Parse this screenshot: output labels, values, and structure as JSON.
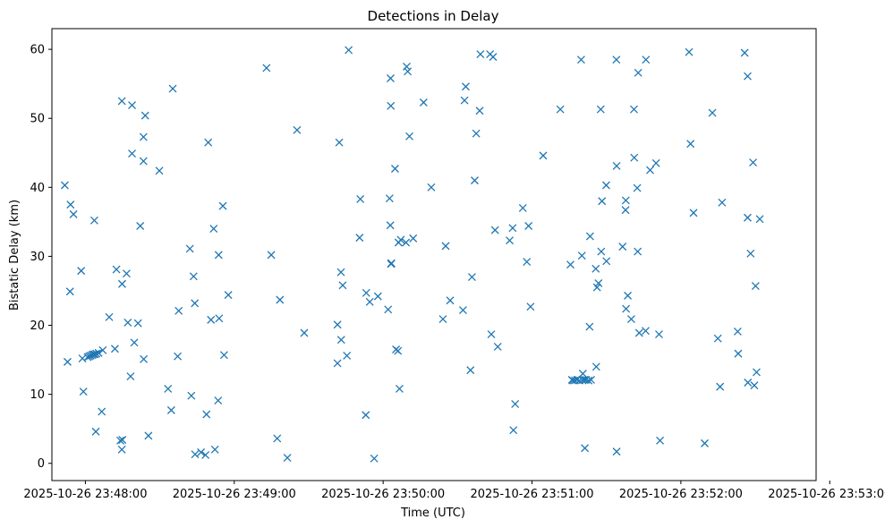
{
  "chart_data": {
    "type": "scatter",
    "title": "Detections in Delay",
    "xlabel": "Time (UTC)",
    "ylabel": "Bistatic Delay (km)",
    "x_unit": "seconds since 2025-10-26 23:47:00",
    "xlim": [
      46.5,
      354.5
    ],
    "ylim": [
      -2.5,
      63
    ],
    "x_ticks": [
      {
        "value": 60,
        "label": "2025-10-26 23:48:00"
      },
      {
        "value": 120,
        "label": "2025-10-26 23:49:00"
      },
      {
        "value": 180,
        "label": "2025-10-26 23:50:00"
      },
      {
        "value": 240,
        "label": "2025-10-26 23:51:00"
      },
      {
        "value": 300,
        "label": "2025-10-26 23:52:00"
      },
      {
        "value": 360,
        "label": "2025-10-26 23:53:00"
      }
    ],
    "y_ticks": [
      {
        "value": 0,
        "label": "0"
      },
      {
        "value": 10,
        "label": "10"
      },
      {
        "value": 20,
        "label": "20"
      },
      {
        "value": 30,
        "label": "30"
      },
      {
        "value": 40,
        "label": "40"
      },
      {
        "value": 50,
        "label": "50"
      },
      {
        "value": 60,
        "label": "60"
      }
    ],
    "marker": "x",
    "color": "#1f77b4",
    "grid": false,
    "series": [
      {
        "name": "detections",
        "points": [
          [
            51.7,
            40.3
          ],
          [
            52.8,
            14.7
          ],
          [
            54.0,
            37.5
          ],
          [
            55.2,
            36.1
          ],
          [
            53.8,
            24.9
          ],
          [
            58.3,
            27.9
          ],
          [
            58.8,
            15.2
          ],
          [
            59.2,
            10.4
          ],
          [
            60.9,
            15.4
          ],
          [
            61.5,
            15.5
          ],
          [
            62.1,
            15.6
          ],
          [
            62.7,
            15.7
          ],
          [
            63.2,
            15.8
          ],
          [
            63.8,
            15.8
          ],
          [
            64.4,
            15.9
          ],
          [
            65.3,
            16.0
          ],
          [
            67.0,
            16.4
          ],
          [
            63.6,
            35.2
          ],
          [
            64.2,
            4.6
          ],
          [
            66.6,
            7.5
          ],
          [
            69.6,
            21.2
          ],
          [
            71.9,
            16.6
          ],
          [
            72.5,
            28.1
          ],
          [
            74.1,
            3.3
          ],
          [
            74.9,
            3.4
          ],
          [
            74.7,
            2.0
          ],
          [
            74.7,
            52.5
          ],
          [
            74.8,
            26.0
          ],
          [
            76.6,
            27.5
          ],
          [
            77.1,
            20.4
          ],
          [
            78.2,
            12.6
          ],
          [
            78.8,
            51.9
          ],
          [
            78.8,
            44.9
          ],
          [
            79.7,
            17.5
          ],
          [
            81.2,
            20.3
          ],
          [
            82.1,
            34.4
          ],
          [
            83.5,
            15.1
          ],
          [
            83.4,
            47.3
          ],
          [
            83.4,
            43.8
          ],
          [
            84.1,
            50.4
          ],
          [
            85.4,
            4.0
          ],
          [
            89.8,
            42.4
          ],
          [
            93.3,
            10.8
          ],
          [
            94.6,
            7.7
          ],
          [
            95.2,
            54.3
          ],
          [
            97.2,
            15.5
          ],
          [
            97.6,
            22.1
          ],
          [
            102.1,
            31.1
          ],
          [
            102.7,
            9.8
          ],
          [
            103.6,
            27.1
          ],
          [
            104.1,
            23.2
          ],
          [
            104.2,
            1.3
          ],
          [
            106.6,
            1.6
          ],
          [
            108.4,
            1.2
          ],
          [
            108.8,
            7.1
          ],
          [
            109.5,
            46.5
          ],
          [
            110.6,
            20.8
          ],
          [
            111.7,
            34.0
          ],
          [
            112.2,
            2.0
          ],
          [
            113.5,
            9.1
          ],
          [
            113.7,
            30.2
          ],
          [
            113.9,
            21.0
          ],
          [
            115.4,
            37.3
          ],
          [
            115.9,
            15.7
          ],
          [
            117.6,
            24.4
          ],
          [
            133.0,
            57.3
          ],
          [
            134.9,
            30.2
          ],
          [
            137.3,
            3.6
          ],
          [
            138.4,
            23.7
          ],
          [
            141.4,
            0.8
          ],
          [
            145.3,
            48.3
          ],
          [
            148.2,
            18.9
          ],
          [
            161.6,
            20.1
          ],
          [
            161.6,
            14.5
          ],
          [
            162.3,
            46.5
          ],
          [
            163.0,
            27.7
          ],
          [
            163.1,
            17.9
          ],
          [
            163.7,
            25.8
          ],
          [
            165.4,
            15.6
          ],
          [
            166.1,
            59.9
          ],
          [
            170.8,
            38.3
          ],
          [
            170.5,
            32.7
          ],
          [
            173.2,
            24.7
          ],
          [
            173.0,
            7.0
          ],
          [
            174.6,
            23.4
          ],
          [
            176.4,
            0.7
          ],
          [
            177.9,
            24.2
          ],
          [
            182.0,
            22.3
          ],
          [
            182.6,
            38.4
          ],
          [
            182.9,
            34.5
          ],
          [
            183.3,
            29.0
          ],
          [
            183.2,
            28.9
          ],
          [
            183.1,
            51.8
          ],
          [
            183.0,
            55.8
          ],
          [
            184.8,
            42.7
          ],
          [
            185.2,
            16.5
          ],
          [
            186.0,
            16.3
          ],
          [
            186.6,
            10.8
          ],
          [
            186.2,
            32.0
          ],
          [
            187.1,
            32.4
          ],
          [
            189.2,
            32.0
          ],
          [
            189.5,
            57.5
          ],
          [
            189.9,
            56.8
          ],
          [
            190.6,
            47.4
          ],
          [
            192.1,
            32.6
          ],
          [
            196.3,
            52.3
          ],
          [
            199.4,
            40.0
          ],
          [
            204.1,
            20.9
          ],
          [
            205.2,
            31.5
          ],
          [
            207.0,
            23.6
          ],
          [
            212.2,
            22.2
          ],
          [
            212.8,
            52.6
          ],
          [
            213.3,
            54.6
          ],
          [
            215.2,
            13.5
          ],
          [
            215.8,
            27.0
          ],
          [
            216.9,
            41.0
          ],
          [
            217.5,
            47.8
          ],
          [
            218.9,
            51.1
          ],
          [
            219.2,
            59.3
          ],
          [
            223.1,
            59.3
          ],
          [
            223.6,
            18.7
          ],
          [
            224.3,
            58.9
          ],
          [
            225.1,
            33.8
          ],
          [
            226.2,
            16.9
          ],
          [
            231.0,
            32.3
          ],
          [
            232.2,
            34.1
          ],
          [
            232.5,
            4.8
          ],
          [
            233.2,
            8.6
          ],
          [
            236.3,
            37.0
          ],
          [
            237.9,
            29.2
          ],
          [
            238.6,
            34.4
          ],
          [
            239.4,
            22.7
          ],
          [
            244.5,
            44.6
          ],
          [
            251.4,
            51.3
          ],
          [
            255.5,
            28.8
          ],
          [
            256.1,
            12.1
          ],
          [
            256.5,
            12.0
          ],
          [
            257.3,
            12.0
          ],
          [
            258.1,
            12.1
          ],
          [
            259.1,
            12.0
          ],
          [
            260.3,
            12.1
          ],
          [
            261.1,
            12.1
          ],
          [
            261.8,
            12.1
          ],
          [
            262.8,
            12.0
          ],
          [
            263.8,
            12.1
          ],
          [
            259.8,
            58.5
          ],
          [
            260.5,
            13.0
          ],
          [
            261.3,
            2.2
          ],
          [
            260.1,
            30.1
          ],
          [
            263.2,
            19.8
          ],
          [
            263.4,
            32.9
          ],
          [
            265.7,
            28.2
          ],
          [
            265.9,
            14.0
          ],
          [
            266.2,
            25.5
          ],
          [
            266.8,
            26.1
          ],
          [
            267.7,
            51.3
          ],
          [
            267.9,
            30.7
          ],
          [
            268.2,
            38.0
          ],
          [
            270.0,
            29.3
          ],
          [
            269.9,
            40.3
          ],
          [
            274.0,
            58.5
          ],
          [
            274.1,
            43.1
          ],
          [
            274.1,
            1.7
          ],
          [
            276.5,
            31.4
          ],
          [
            277.8,
            38.1
          ],
          [
            277.7,
            36.7
          ],
          [
            277.9,
            22.4
          ],
          [
            278.6,
            24.3
          ],
          [
            280.0,
            20.9
          ],
          [
            281.1,
            51.3
          ],
          [
            281.2,
            44.3
          ],
          [
            282.4,
            39.9
          ],
          [
            282.8,
            56.6
          ],
          [
            282.6,
            30.7
          ],
          [
            283.2,
            18.9
          ],
          [
            285.8,
            19.2
          ],
          [
            285.9,
            58.5
          ],
          [
            287.6,
            42.5
          ],
          [
            290.0,
            43.5
          ],
          [
            291.6,
            3.3
          ],
          [
            291.2,
            18.7
          ],
          [
            303.3,
            59.6
          ],
          [
            303.9,
            46.3
          ],
          [
            305.1,
            36.3
          ],
          [
            309.6,
            2.9
          ],
          [
            312.7,
            50.8
          ],
          [
            314.9,
            18.1
          ],
          [
            315.8,
            11.1
          ],
          [
            316.6,
            37.8
          ],
          [
            322.9,
            19.1
          ],
          [
            323.1,
            15.9
          ],
          [
            325.7,
            59.5
          ],
          [
            326.9,
            56.1
          ],
          [
            326.9,
            35.6
          ],
          [
            327.0,
            11.7
          ],
          [
            328.1,
            30.4
          ],
          [
            329.1,
            43.6
          ],
          [
            329.6,
            11.3
          ],
          [
            330.1,
            25.7
          ],
          [
            330.5,
            13.2
          ],
          [
            331.8,
            35.4
          ]
        ]
      }
    ]
  }
}
